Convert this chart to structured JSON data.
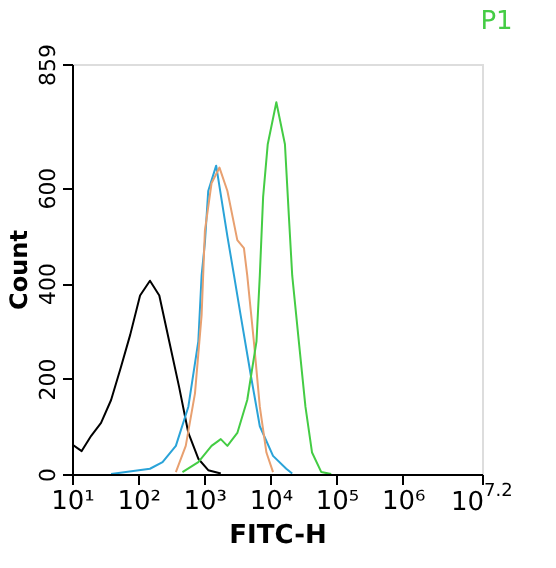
{
  "chart_data": {
    "type": "line",
    "title": "P1",
    "xlabel": "FITC-H",
    "ylabel": "Count",
    "log": "x",
    "grid": false,
    "legend": false,
    "marker": "none",
    "line_style": "solid",
    "xlim": [
      10,
      15848932
    ],
    "ylim": [
      0,
      859
    ],
    "xticks": [
      {
        "value": 10,
        "label": "10¹"
      },
      {
        "value": 100,
        "label": "10²"
      },
      {
        "value": 1000,
        "label": "10³"
      },
      {
        "value": 10000,
        "label": "10⁴"
      },
      {
        "value": 100000,
        "label": "10⁵"
      },
      {
        "value": 1000000,
        "label": "10⁶"
      },
      {
        "value": 15848932,
        "label": "10$^{7.2}$"
      }
    ],
    "yticks": [
      0,
      200,
      400,
      600,
      859
    ],
    "series": [
      {
        "color": "#000000",
        "x": [
          10,
          14,
          19.5,
          27.5,
          39,
          55,
          76,
          107,
          151,
          209,
          295,
          417,
          575,
          813,
          1148,
          1778
        ],
        "values": [
          62,
          48,
          80,
          107,
          155,
          224,
          292,
          374,
          405,
          374,
          278,
          182,
          86,
          32,
          8,
          1
        ]
      },
      {
        "color": "#2aa3d8",
        "x": [
          39,
          151,
          234,
          372,
          575,
          813,
          912,
          1023,
          1148,
          1514,
          2239,
          2818,
          3548,
          5012,
          6918,
          10965,
          17378,
          21380
        ],
        "values": [
          0,
          11,
          25,
          59,
          141,
          278,
          416,
          485,
          593,
          646,
          498,
          416,
          333,
          210,
          100,
          38,
          11,
          1
        ]
      },
      {
        "color": "#e8a070",
        "x": [
          372,
          525,
          724,
          912,
          1023,
          1288,
          1698,
          2239,
          3162,
          3981,
          4467,
          5623,
          6918,
          8710,
          10965
        ],
        "values": [
          4,
          59,
          169,
          333,
          510,
          609,
          642,
          593,
          490,
          473,
          416,
          278,
          141,
          45,
          4
        ]
      },
      {
        "color": "#44cc44",
        "x": [
          468,
          813,
          1288,
          1778,
          2239,
          3162,
          4467,
          6166,
          6918,
          7762,
          9120,
          12303,
          16596,
          19055,
          21380,
          26915,
          33884,
          42658,
          58884,
          83176
        ],
        "values": [
          4,
          25,
          59,
          73,
          59,
          86,
          155,
          278,
          416,
          580,
          691,
          779,
          691,
          539,
          416,
          278,
          141,
          45,
          4,
          0
        ]
      }
    ]
  }
}
